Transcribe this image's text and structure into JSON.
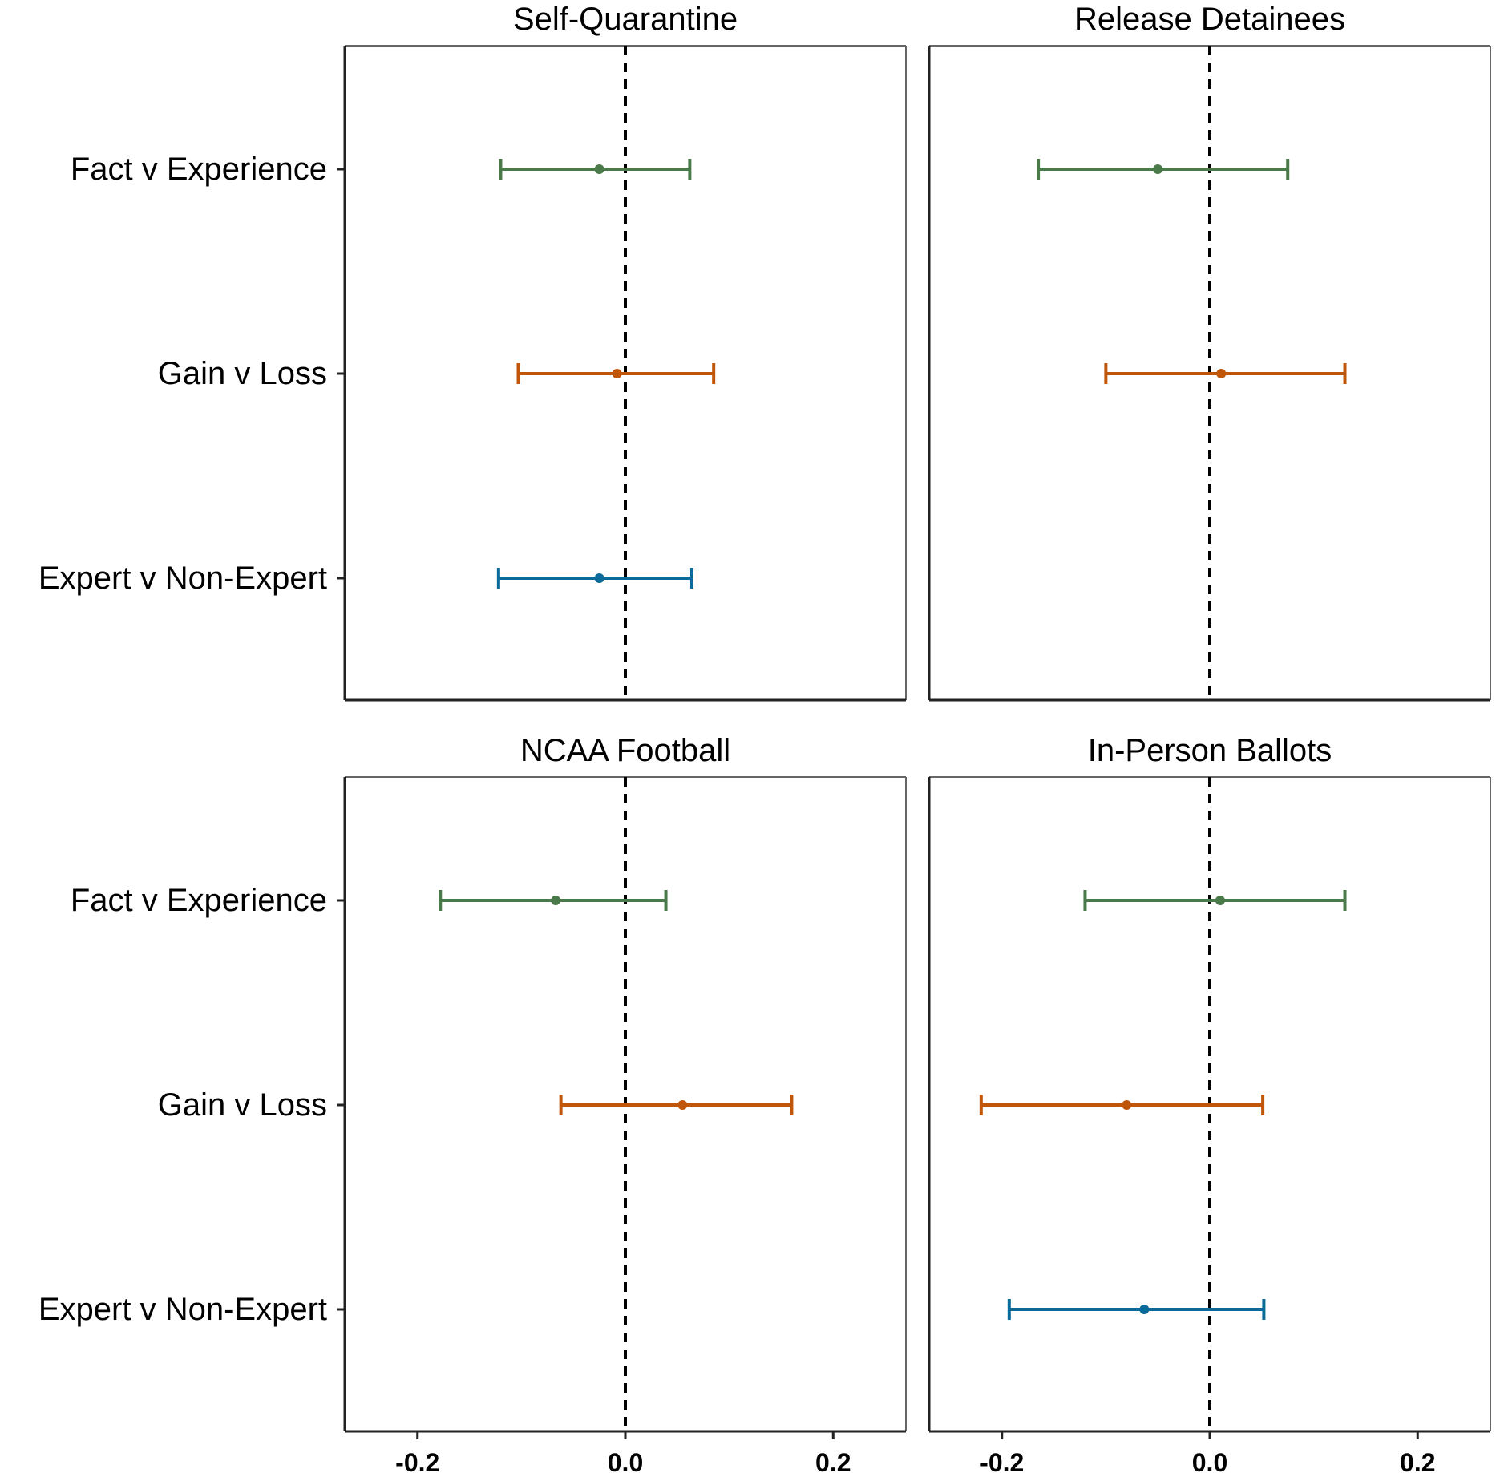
{
  "chart_data": {
    "type": "forest",
    "xlim": [
      -0.27,
      0.27
    ],
    "x_ticks": [
      -0.2,
      0.0,
      0.2
    ],
    "x_tick_labels": [
      "-0.2",
      "0.0",
      "0.2"
    ],
    "reference_line": 0,
    "categories": [
      "Fact v Experience",
      "Gain v Loss",
      "Expert v Non-Expert"
    ],
    "colors": {
      "Fact v Experience": "#4a7a4a",
      "Gain v Loss": "#c0560a",
      "Expert v Non-Expert": "#0a6a9a"
    },
    "panels": [
      {
        "title": "Self-Quarantine",
        "rows": [
          {
            "label": "Fact v Experience",
            "estimate": -0.025,
            "lower": -0.12,
            "upper": 0.062
          },
          {
            "label": "Gain v Loss",
            "estimate": -0.008,
            "lower": -0.103,
            "upper": 0.085
          },
          {
            "label": "Expert v Non-Expert",
            "estimate": -0.025,
            "lower": -0.122,
            "upper": 0.064
          }
        ]
      },
      {
        "title": "Release Detainees",
        "rows": [
          {
            "label": "Fact v Experience",
            "estimate": -0.05,
            "lower": -0.165,
            "upper": 0.075
          },
          {
            "label": "Gain v Loss",
            "estimate": 0.011,
            "lower": -0.1,
            "upper": 0.13
          },
          {
            "label": "Expert v Non-Expert",
            "estimate": null,
            "lower": null,
            "upper": null
          }
        ]
      },
      {
        "title": "NCAA Football",
        "rows": [
          {
            "label": "Fact v Experience",
            "estimate": -0.067,
            "lower": -0.178,
            "upper": 0.039
          },
          {
            "label": "Gain v Loss",
            "estimate": 0.055,
            "lower": -0.062,
            "upper": 0.16
          }
        ]
      },
      {
        "title": "In-Person Ballots",
        "rows": [
          {
            "label": "Fact v Experience",
            "estimate": 0.01,
            "lower": -0.12,
            "upper": 0.13
          },
          {
            "label": "Gain v Loss",
            "estimate": -0.08,
            "lower": -0.22,
            "upper": 0.051
          },
          {
            "label": "Expert v Non-Expert",
            "estimate": -0.063,
            "lower": -0.193,
            "upper": 0.052
          }
        ]
      }
    ]
  }
}
